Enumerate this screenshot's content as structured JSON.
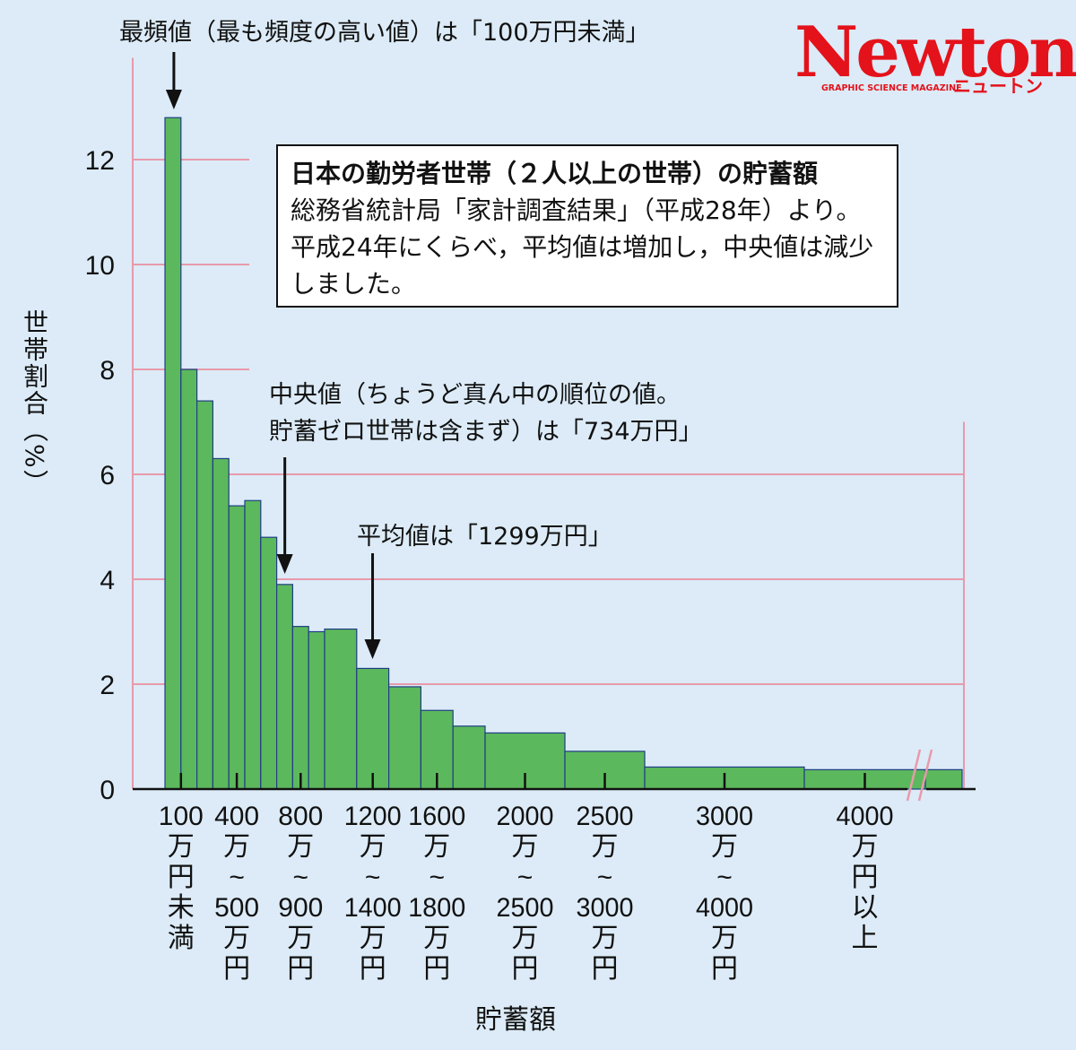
{
  "logo": {
    "main": "Newton",
    "sub": "GRAPHIC SCIENCE MAGAZINE",
    "kana": "ニュートン"
  },
  "info_box": {
    "title": "日本の勤労者世帯（２人以上の世帯）の貯蓄額",
    "body": "総務省統計局「家計調査結果」（平成28年）より。平成24年にくらべ，平均値は増加し，中央値は減少しました。"
  },
  "annotations": {
    "mode": "最頻値（最も頻度の高い値）は「100万円未満」",
    "median_line1": "中央値（ちょうど真ん中の順位の値。",
    "median_line2": "貯蓄ゼロ世帯は含まず）は「734万円」",
    "mean": "平均値は「1299万円」"
  },
  "chart_data": {
    "type": "bar",
    "title": "日本の勤労者世帯（２人以上の世帯）の貯蓄額",
    "xlabel": "貯蓄額",
    "ylabel": "世帯割合（%）",
    "ylim": [
      0,
      13
    ],
    "yticks": [
      0,
      2,
      4,
      6,
      8,
      10,
      12
    ],
    "grid": true,
    "bars": [
      {
        "from": 0,
        "to": 100,
        "value": 12.8
      },
      {
        "from": 100,
        "to": 200,
        "value": 8.0
      },
      {
        "from": 200,
        "to": 300,
        "value": 7.4
      },
      {
        "from": 300,
        "to": 400,
        "value": 6.3
      },
      {
        "from": 400,
        "to": 500,
        "value": 5.4
      },
      {
        "from": 500,
        "to": 600,
        "value": 5.5
      },
      {
        "from": 600,
        "to": 700,
        "value": 4.8
      },
      {
        "from": 700,
        "to": 800,
        "value": 3.9
      },
      {
        "from": 800,
        "to": 900,
        "value": 3.1
      },
      {
        "from": 900,
        "to": 1000,
        "value": 3.0
      },
      {
        "from": 1000,
        "to": 1200,
        "value": 3.05
      },
      {
        "from": 1200,
        "to": 1400,
        "value": 2.3
      },
      {
        "from": 1400,
        "to": 1600,
        "value": 1.95
      },
      {
        "from": 1600,
        "to": 1800,
        "value": 1.5
      },
      {
        "from": 1800,
        "to": 2000,
        "value": 1.2
      },
      {
        "from": 2000,
        "to": 2500,
        "value": 1.07
      },
      {
        "from": 2500,
        "to": 3000,
        "value": 0.72
      },
      {
        "from": 3000,
        "to": 4000,
        "value": 0.42
      },
      {
        "from": 4000,
        "to": 5000,
        "value": 0.37
      },
      {
        "from": 5000,
        "to": null,
        "value": 0.37
      }
    ],
    "category_labels": [
      {
        "at": 100,
        "lines": [
          "100",
          "万",
          "円",
          "未",
          "満"
        ]
      },
      {
        "at": 450,
        "lines": [
          "400",
          "万",
          "~",
          "500",
          "万",
          "円"
        ]
      },
      {
        "at": 850,
        "lines": [
          "800",
          "万",
          "~",
          "900",
          "万",
          "円"
        ]
      },
      {
        "at": 1300,
        "lines": [
          "1200",
          "万",
          "~",
          "1400",
          "万",
          "円"
        ]
      },
      {
        "at": 1700,
        "lines": [
          "1600",
          "万",
          "~",
          "1800",
          "万",
          "円"
        ]
      },
      {
        "at": 2250,
        "lines": [
          "2000",
          "万",
          "~",
          "2500",
          "万",
          "円"
        ]
      },
      {
        "at": 2750,
        "lines": [
          "2500",
          "万",
          "~",
          "3000",
          "万",
          "円"
        ]
      },
      {
        "at": 3500,
        "lines": [
          "3000",
          "万",
          "~",
          "4000",
          "万",
          "円"
        ]
      },
      {
        "at": 4500,
        "lines": [
          "4000",
          "万",
          "円",
          "以",
          "上"
        ]
      }
    ],
    "mode_at": 50,
    "median": 734,
    "mean": 1299,
    "colors": {
      "bar": "#5cb85c",
      "bar_edge": "#1f3d85",
      "grid": "#e89aab",
      "background": "#dcebf7"
    }
  }
}
